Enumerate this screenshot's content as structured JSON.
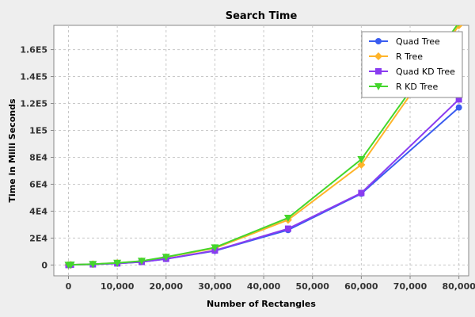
{
  "chart_data": {
    "type": "line",
    "title": "Search Time",
    "xlabel": "Number of Rectangles",
    "ylabel": "Time in Milli Seconds",
    "xlim": [
      -3000,
      82000
    ],
    "ylim": [
      -8000,
      178000
    ],
    "x_ticks": [
      0,
      10000,
      20000,
      30000,
      40000,
      50000,
      60000,
      70000,
      80000
    ],
    "x_tick_labels": [
      "0",
      "10,000",
      "20,000",
      "30,000",
      "40,000",
      "50,000",
      "60,000",
      "70,000",
      "80,000"
    ],
    "y_ticks": [
      0,
      20000,
      40000,
      60000,
      80000,
      100000,
      120000,
      140000,
      160000
    ],
    "y_tick_labels": [
      "0",
      "2E4",
      "4E4",
      "6E4",
      "8E4",
      "1E5",
      "1.2E5",
      "1.4E5",
      "1.6E5"
    ],
    "grid": true,
    "legend_position": "top-right",
    "x": [
      0,
      500,
      5000,
      10000,
      15000,
      20000,
      30000,
      45000,
      60000,
      80000
    ],
    "series": [
      {
        "name": "Quad Tree",
        "color": "#3a5cf0",
        "marker": "circle",
        "values": [
          0,
          200,
          500,
          1200,
          2300,
          4500,
          10500,
          26000,
          53000,
          117000
        ]
      },
      {
        "name": "R Tree",
        "color": "#ffb42a",
        "marker": "diamond",
        "values": [
          0,
          200,
          600,
          1500,
          2800,
          5800,
          12500,
          33500,
          74500,
          178000
        ]
      },
      {
        "name": "Quad KD Tree",
        "color": "#8a3cf0",
        "marker": "square",
        "values": [
          0,
          200,
          500,
          1200,
          2300,
          4600,
          10800,
          27000,
          53500,
          123000
        ]
      },
      {
        "name": "R KD Tree",
        "color": "#44d62c",
        "marker": "triangle-down",
        "values": [
          0,
          200,
          700,
          1600,
          3000,
          6000,
          13000,
          35000,
          78500,
          180000
        ]
      }
    ]
  }
}
